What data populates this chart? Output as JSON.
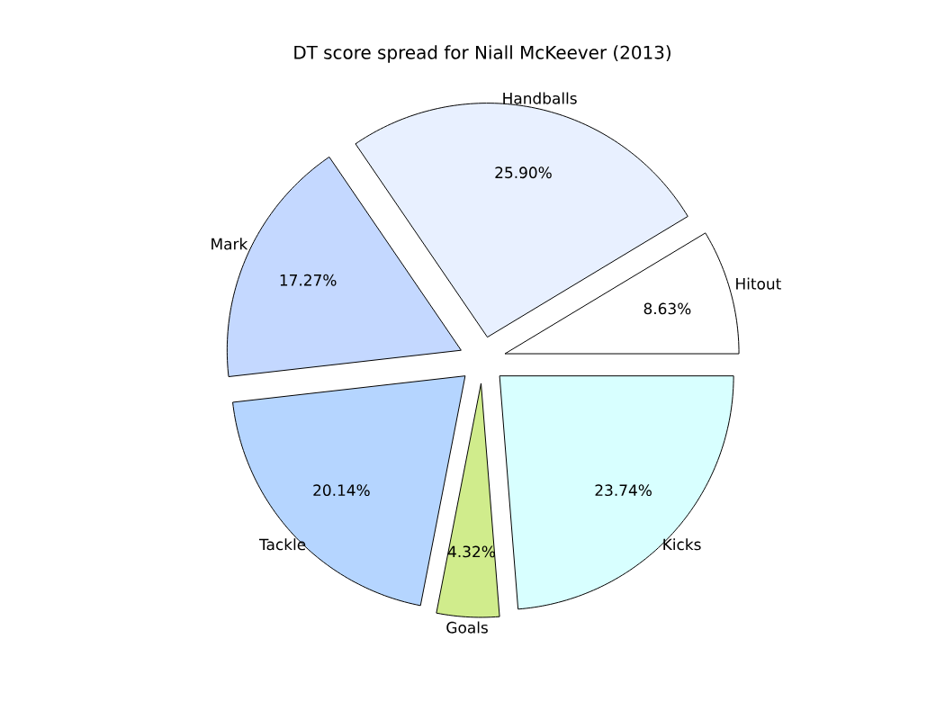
{
  "chart_data": {
    "type": "pie",
    "title": "DT score spread for Niall McKeever (2013)",
    "categories": [
      "Hitout",
      "Handballs",
      "Mark",
      "Tackle",
      "Goals",
      "Kicks"
    ],
    "values": [
      8.63,
      25.9,
      17.27,
      20.14,
      4.32,
      23.74
    ],
    "value_labels": [
      "8.63%",
      "25.90%",
      "17.27%",
      "20.14%",
      "4.32%",
      "23.74%"
    ],
    "colors": [
      "#ffffff",
      "#e8f0ff",
      "#c4d8ff",
      "#b5d5ff",
      "#d0ec8c",
      "#d8ffff"
    ]
  }
}
